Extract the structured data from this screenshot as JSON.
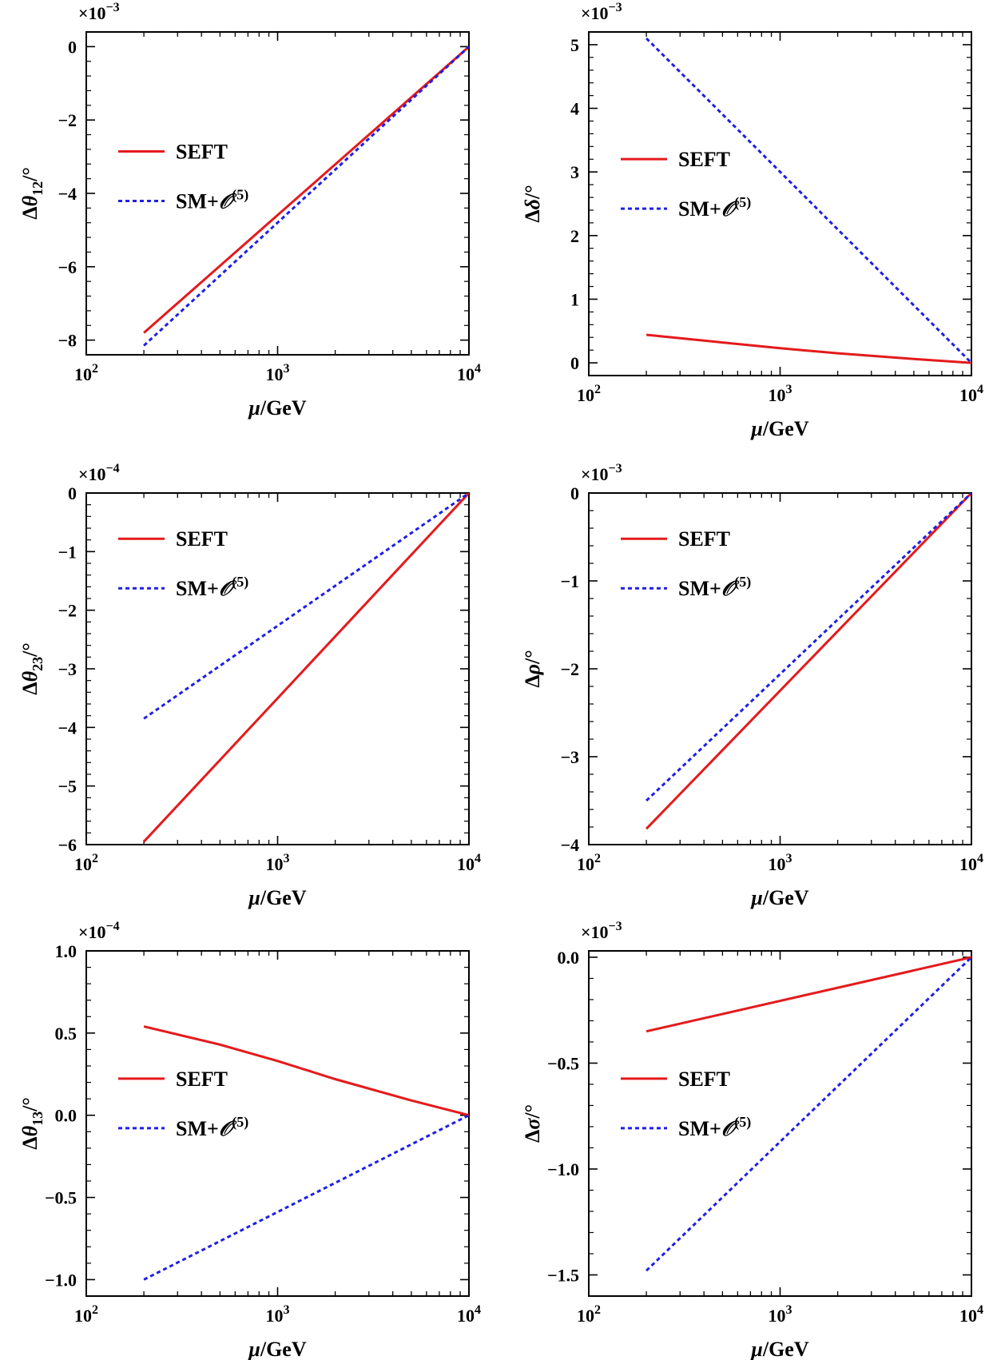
{
  "series_styles": {
    "SEFT": {
      "color": "#e41a1c",
      "dashed": false
    },
    "SM+O5": {
      "color": "#1f1fe6",
      "dashed": true
    }
  },
  "chart_data": [
    {
      "type": "line",
      "xscale": "log",
      "xlim": [
        100,
        10000
      ],
      "xticks": [
        100,
        1000,
        10000
      ],
      "xtick_labels": [
        {
          "base": "10",
          "exp": "2"
        },
        {
          "base": "10",
          "exp": "3"
        },
        {
          "base": "10",
          "exp": "4"
        }
      ],
      "xlabel": {
        "symbol": "μ",
        "unit": "/GeV"
      },
      "ylabel": {
        "symbol": "Δθ",
        "sub": "12",
        "unit": "/°"
      },
      "ylim": [
        -8.4,
        0.4
      ],
      "yticks": [
        0,
        -2,
        -4,
        -6,
        -8
      ],
      "ytick_labels": [
        "0",
        "−2",
        "−4",
        "−6",
        "−8"
      ],
      "multiplier": {
        "base": "×10",
        "exp": "−3"
      },
      "legend_position": "middle-left",
      "series": [
        {
          "name": "SEFT",
          "x": [
            200,
            10000
          ],
          "y": [
            -7.8,
            0
          ]
        },
        {
          "name": "SM+𝒪",
          "name_sup": "(5)",
          "x": [
            200,
            10000
          ],
          "y": [
            -8.15,
            0
          ]
        }
      ]
    },
    {
      "type": "line",
      "xscale": "log",
      "xlim": [
        100,
        10000
      ],
      "xticks": [
        100,
        1000,
        10000
      ],
      "xtick_labels": [
        {
          "base": "10",
          "exp": "2"
        },
        {
          "base": "10",
          "exp": "3"
        },
        {
          "base": "10",
          "exp": "4"
        }
      ],
      "xlabel": {
        "symbol": "μ",
        "unit": "/GeV"
      },
      "ylabel": {
        "symbol": "Δδ",
        "sub": "",
        "unit": "/°"
      },
      "ylim": [
        -0.2,
        5.2
      ],
      "yticks": [
        0,
        1,
        2,
        3,
        4,
        5
      ],
      "ytick_labels": [
        "0",
        "1",
        "2",
        "3",
        "4",
        "5"
      ],
      "multiplier": {
        "base": "×10",
        "exp": "−3"
      },
      "legend_position": "upper-middle-left",
      "series": [
        {
          "name": "SEFT",
          "x": [
            200,
            500,
            1000,
            2000,
            5000,
            10000
          ],
          "y": [
            0.44,
            0.32,
            0.23,
            0.15,
            0.06,
            0
          ]
        },
        {
          "name": "SM+𝒪",
          "name_sup": "(5)",
          "x": [
            200,
            10000
          ],
          "y": [
            5.1,
            0
          ]
        }
      ]
    },
    {
      "type": "line",
      "xscale": "log",
      "xlim": [
        100,
        10000
      ],
      "xticks": [
        100,
        1000,
        10000
      ],
      "xtick_labels": [
        {
          "base": "10",
          "exp": "2"
        },
        {
          "base": "10",
          "exp": "3"
        },
        {
          "base": "10",
          "exp": "4"
        }
      ],
      "xlabel": {
        "symbol": "μ",
        "unit": "/GeV"
      },
      "ylabel": {
        "symbol": "Δθ",
        "sub": "23",
        "unit": "/°"
      },
      "ylim": [
        -6,
        0
      ],
      "yticks": [
        0,
        -1,
        -2,
        -3,
        -4,
        -5,
        -6
      ],
      "ytick_labels": [
        "0",
        "−1",
        "−2",
        "−3",
        "−4",
        "−5",
        "−6"
      ],
      "multiplier": {
        "base": "×10",
        "exp": "−4"
      },
      "legend_position": "upper-left",
      "series": [
        {
          "name": "SEFT",
          "x": [
            200,
            10000
          ],
          "y": [
            -5.95,
            0
          ]
        },
        {
          "name": "SM+𝒪",
          "name_sup": "(5)",
          "x": [
            200,
            10000
          ],
          "y": [
            -3.85,
            0
          ]
        }
      ]
    },
    {
      "type": "line",
      "xscale": "log",
      "xlim": [
        100,
        10000
      ],
      "xticks": [
        100,
        1000,
        10000
      ],
      "xtick_labels": [
        {
          "base": "10",
          "exp": "2"
        },
        {
          "base": "10",
          "exp": "3"
        },
        {
          "base": "10",
          "exp": "4"
        }
      ],
      "xlabel": {
        "symbol": "μ",
        "unit": "/GeV"
      },
      "ylabel": {
        "symbol": "Δρ",
        "sub": "",
        "unit": "/°"
      },
      "ylim": [
        -4,
        0
      ],
      "yticks": [
        0,
        -1,
        -2,
        -3,
        -4
      ],
      "ytick_labels": [
        "0",
        "−1",
        "−2",
        "−3",
        "−4"
      ],
      "multiplier": {
        "base": "×10",
        "exp": "−3"
      },
      "legend_position": "upper-left",
      "series": [
        {
          "name": "SEFT",
          "x": [
            200,
            10000
          ],
          "y": [
            -3.82,
            0
          ]
        },
        {
          "name": "SM+𝒪",
          "name_sup": "(5)",
          "x": [
            200,
            10000
          ],
          "y": [
            -3.5,
            0
          ]
        }
      ]
    },
    {
      "type": "line",
      "xscale": "log",
      "xlim": [
        100,
        10000
      ],
      "xticks": [
        100,
        1000,
        10000
      ],
      "xtick_labels": [
        {
          "base": "10",
          "exp": "2"
        },
        {
          "base": "10",
          "exp": "3"
        },
        {
          "base": "10",
          "exp": "4"
        }
      ],
      "xlabel": {
        "symbol": "μ",
        "unit": "/GeV"
      },
      "ylabel": {
        "symbol": "Δθ",
        "sub": "13",
        "unit": "/°"
      },
      "ylim": [
        -1.1,
        1.0
      ],
      "yticks": [
        1.0,
        0.5,
        0.0,
        -0.5,
        -1.0
      ],
      "ytick_labels": [
        "1.0",
        "0.5",
        "0.0",
        "−0.5",
        "−1.0"
      ],
      "multiplier": {
        "base": "×10",
        "exp": "−4"
      },
      "legend_position": "middle-left",
      "series": [
        {
          "name": "SEFT",
          "x": [
            200,
            500,
            1000,
            2000,
            5000,
            10000
          ],
          "y": [
            0.54,
            0.43,
            0.33,
            0.22,
            0.09,
            0
          ]
        },
        {
          "name": "SM+𝒪",
          "name_sup": "(5)",
          "x": [
            200,
            10000
          ],
          "y": [
            -1.0,
            0
          ]
        }
      ]
    },
    {
      "type": "line",
      "xscale": "log",
      "xlim": [
        100,
        10000
      ],
      "xticks": [
        100,
        1000,
        10000
      ],
      "xtick_labels": [
        {
          "base": "10",
          "exp": "2"
        },
        {
          "base": "10",
          "exp": "3"
        },
        {
          "base": "10",
          "exp": "4"
        }
      ],
      "xlabel": {
        "symbol": "μ",
        "unit": "/GeV"
      },
      "ylabel": {
        "symbol": "Δσ",
        "sub": "",
        "unit": "/°"
      },
      "ylim": [
        -1.6,
        0.03
      ],
      "yticks": [
        0.0,
        -0.5,
        -1.0,
        -1.5
      ],
      "ytick_labels": [
        "0.0",
        "−0.5",
        "−1.0",
        "−1.5"
      ],
      "multiplier": {
        "base": "×10",
        "exp": "−3"
      },
      "legend_position": "middle-left",
      "series": [
        {
          "name": "SEFT",
          "x": [
            200,
            10000
          ],
          "y": [
            -0.35,
            0
          ]
        },
        {
          "name": "SM+𝒪",
          "name_sup": "(5)",
          "x": [
            200,
            10000
          ],
          "y": [
            -1.48,
            0
          ]
        }
      ]
    }
  ]
}
